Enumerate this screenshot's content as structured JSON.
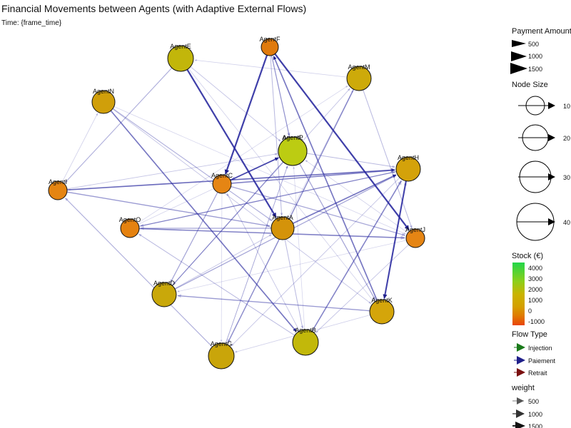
{
  "title": "Financial Movements between Agents (with Adaptive External Flows)",
  "subtitle": "Time: {frame_time}",
  "legends": {
    "payment_amount": {
      "title": "Payment Amount",
      "items": [
        "500",
        "1000",
        "1500"
      ]
    },
    "node_size": {
      "title": "Node Size",
      "items": [
        "10",
        "20",
        "30",
        "40"
      ]
    },
    "stock": {
      "title": "Stock (€)",
      "ticks": [
        "4000",
        "3000",
        "2000",
        "1000",
        "0",
        "-1000"
      ],
      "colors": [
        "#22d64a",
        "#8ccf1a",
        "#c9b400",
        "#d4a000",
        "#e07a00",
        "#e8440a"
      ]
    },
    "flow_type": {
      "title": "Flow Type",
      "items": [
        {
          "label": "Injection",
          "color": "#1a7a1a"
        },
        {
          "label": "Paiement",
          "color": "#1f1f8a"
        },
        {
          "label": "Retrait",
          "color": "#7a1010"
        }
      ]
    },
    "weight": {
      "title": "weight",
      "items": [
        "500",
        "1000",
        "1500"
      ]
    }
  },
  "chart_data": {
    "type": "network",
    "nodes": [
      {
        "id": "AgentA",
        "label": "AgentA",
        "color": "#d4930a"
      },
      {
        "id": "AgentB",
        "label": "AgentB",
        "color": "#c2b80a"
      },
      {
        "id": "AgentC",
        "label": "AgentC",
        "color": "#e58514"
      },
      {
        "id": "AgentD",
        "label": "AgentD",
        "color": "#c9a80a"
      },
      {
        "id": "AgentE",
        "label": "AgentE",
        "color": "#c2b60a"
      },
      {
        "id": "AgentF",
        "label": "AgentF",
        "color": "#e07a0c"
      },
      {
        "id": "AgentG",
        "label": "AgentG",
        "color": "#c9a50a"
      },
      {
        "id": "AgentH",
        "label": "AgentH",
        "color": "#d4a20a"
      },
      {
        "id": "AgentI",
        "label": "AgentI",
        "color": "#e58512"
      },
      {
        "id": "AgentJ",
        "label": "AgentJ",
        "color": "#e58514"
      },
      {
        "id": "AgentK",
        "label": "AgentK",
        "color": "#d4a50a"
      },
      {
        "id": "AgentL",
        "label": "AgentL",
        "color": "#c2b60a"
      },
      {
        "id": "AgentM",
        "label": "AgentM",
        "color": "#cdaa0a"
      },
      {
        "id": "AgentN",
        "label": "AgentN",
        "color": "#d09f0a"
      },
      {
        "id": "AgentO",
        "label": "AgentO",
        "color": "#e58210"
      },
      {
        "id": "AgentP",
        "label": "AgentP",
        "color": "#bccc12"
      }
    ],
    "edges": [
      {
        "from": "AgentF",
        "to": "AgentC",
        "weight": 1500
      },
      {
        "from": "AgentE",
        "to": "AgentA",
        "weight": 1500
      },
      {
        "from": "AgentF",
        "to": "AgentJ",
        "weight": 1500
      },
      {
        "from": "AgentH",
        "to": "AgentK",
        "weight": 1400
      },
      {
        "from": "AgentI",
        "to": "AgentH",
        "weight": 1000
      },
      {
        "from": "AgentN",
        "to": "AgentB",
        "weight": 1000
      },
      {
        "from": "AgentC",
        "to": "AgentL",
        "weight": 1100
      },
      {
        "from": "AgentO",
        "to": "AgentJ",
        "weight": 900
      },
      {
        "from": "AgentK",
        "to": "AgentF",
        "weight": 1000
      },
      {
        "from": "AgentC",
        "to": "AgentH",
        "weight": 900
      },
      {
        "from": "AgentA",
        "to": "AgentH",
        "weight": 1000
      },
      {
        "from": "AgentM",
        "to": "AgentG",
        "weight": 800
      },
      {
        "from": "AgentI",
        "to": "AgentA",
        "weight": 700
      },
      {
        "from": "AgentB",
        "to": "AgentH",
        "weight": 900
      },
      {
        "from": "AgentL",
        "to": "AgentC",
        "weight": 700
      },
      {
        "from": "AgentK",
        "to": "AgentD",
        "weight": 700
      },
      {
        "from": "AgentA",
        "to": "AgentO",
        "weight": 600
      },
      {
        "from": "AgentC",
        "to": "AgentJ",
        "weight": 600
      },
      {
        "from": "AgentH",
        "to": "AgentO",
        "weight": 600
      },
      {
        "from": "AgentE",
        "to": "AgentI",
        "weight": 500
      },
      {
        "from": "AgentP",
        "to": "AgentK",
        "weight": 600
      },
      {
        "from": "AgentN",
        "to": "AgentA",
        "weight": 500
      },
      {
        "from": "AgentD",
        "to": "AgentH",
        "weight": 600
      },
      {
        "from": "AgentF",
        "to": "AgentL",
        "weight": 600
      },
      {
        "from": "AgentG",
        "to": "AgentI",
        "weight": 500
      },
      {
        "from": "AgentB",
        "to": "AgentO",
        "weight": 400
      },
      {
        "from": "AgentC",
        "to": "AgentD",
        "weight": 600
      },
      {
        "from": "AgentK",
        "to": "AgentH",
        "weight": 500
      },
      {
        "from": "AgentM",
        "to": "AgentJ",
        "weight": 400
      },
      {
        "from": "AgentP",
        "to": "AgentD",
        "weight": 500
      },
      {
        "from": "AgentA",
        "to": "AgentB",
        "weight": 400
      },
      {
        "from": "AgentO",
        "to": "AgentH",
        "weight": 400
      },
      {
        "from": "AgentI",
        "to": "AgentP",
        "weight": 300
      },
      {
        "from": "AgentE",
        "to": "AgentP",
        "weight": 300
      },
      {
        "from": "AgentN",
        "to": "AgentK",
        "weight": 300
      },
      {
        "from": "AgentL",
        "to": "AgentH",
        "weight": 400
      },
      {
        "from": "AgentD",
        "to": "AgentM",
        "weight": 300
      },
      {
        "from": "AgentJ",
        "to": "AgentB",
        "weight": 300
      },
      {
        "from": "AgentG",
        "to": "AgentL",
        "weight": 300
      },
      {
        "from": "AgentF",
        "to": "AgentA",
        "weight": 400
      },
      {
        "from": "AgentP",
        "to": "AgentC",
        "weight": 200
      },
      {
        "from": "AgentH",
        "to": "AgentG",
        "weight": 300
      },
      {
        "from": "AgentO",
        "to": "AgentL",
        "weight": 200
      },
      {
        "from": "AgentB",
        "to": "AgentC",
        "weight": 300
      },
      {
        "from": "AgentD",
        "to": "AgentA",
        "weight": 300
      },
      {
        "from": "AgentM",
        "to": "AgentE",
        "weight": 200
      },
      {
        "from": "AgentK",
        "to": "AgentG",
        "weight": 200
      },
      {
        "from": "AgentI",
        "to": "AgentN",
        "weight": 200
      },
      {
        "from": "AgentJ",
        "to": "AgentP",
        "weight": 200
      },
      {
        "from": "AgentL",
        "to": "AgentD",
        "weight": 200
      },
      {
        "from": "AgentG",
        "to": "AgentP",
        "weight": 200
      },
      {
        "from": "AgentE",
        "to": "AgentK",
        "weight": 200
      },
      {
        "from": "AgentN",
        "to": "AgentJ",
        "weight": 150
      },
      {
        "from": "AgentO",
        "to": "AgentM",
        "weight": 150
      },
      {
        "from": "AgentH",
        "to": "AgentI",
        "weight": 150
      },
      {
        "from": "AgentC",
        "to": "AgentG",
        "weight": 150
      },
      {
        "from": "AgentB",
        "to": "AgentL",
        "weight": 150
      },
      {
        "from": "AgentA",
        "to": "AgentM",
        "weight": 150
      },
      {
        "from": "AgentJ",
        "to": "AgentD",
        "weight": 150
      },
      {
        "from": "AgentF",
        "to": "AgentP",
        "weight": 150
      }
    ]
  }
}
